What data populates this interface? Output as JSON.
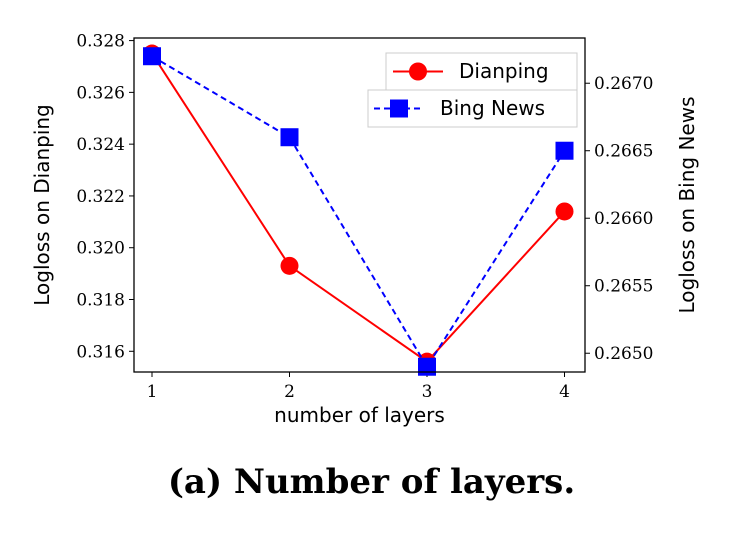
{
  "caption": "(a) Number of layers.",
  "chart_data": {
    "type": "line",
    "x": [
      1,
      2,
      3,
      4
    ],
    "xlabel": "number of layers",
    "x_ticks": [
      "1",
      "2",
      "3",
      "4"
    ],
    "series": [
      {
        "name": "Dianping",
        "axis": "left",
        "values": [
          0.3275,
          0.3193,
          0.3156,
          0.3214
        ],
        "color": "#ff0000",
        "line": "solid",
        "marker": "circle"
      },
      {
        "name": "Bing News",
        "axis": "right",
        "values": [
          0.2672,
          0.2666,
          0.2649,
          0.2665
        ],
        "color": "#0000ff",
        "line": "dashed",
        "marker": "square"
      }
    ],
    "left_axis": {
      "label": "Logloss on Dianping",
      "ticks": [
        "0.316",
        "0.318",
        "0.320",
        "0.322",
        "0.324",
        "0.326",
        "0.328"
      ],
      "ylim": [
        0.3152,
        0.3281
      ]
    },
    "right_axis": {
      "label": "Logloss on Bing News",
      "ticks": [
        "0.2650",
        "0.2655",
        "0.2660",
        "0.2665",
        "0.2670"
      ],
      "ylim": [
        0.264861,
        0.267335
      ]
    },
    "grid": false,
    "legend_position": "top-right"
  }
}
